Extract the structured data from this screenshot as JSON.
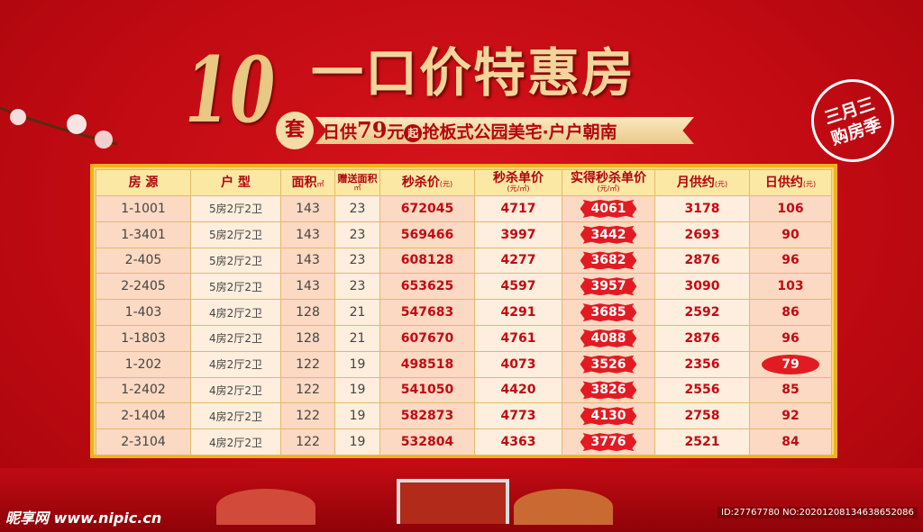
{
  "header": {
    "count": "10",
    "title": "一口价特惠房",
    "unit": "套",
    "sub_pre": "日供",
    "sub_num": "79",
    "sub_yuan": "元",
    "sub_qi": "起",
    "sub_post": "抢板式公园美宅·户户朝南"
  },
  "stamp": {
    "line1": "三月三",
    "line2": "购房季"
  },
  "table": {
    "headers": [
      {
        "t": "房 源",
        "u": ""
      },
      {
        "t": "户 型",
        "u": ""
      },
      {
        "t": "面积",
        "u": "㎡"
      },
      {
        "t": "赠送面积",
        "u": "㎡"
      },
      {
        "t": "秒杀价",
        "u": "(元)"
      },
      {
        "t": "秒杀单价",
        "u": "(元/㎡)"
      },
      {
        "t": "实得秒杀单价",
        "u": "(元/㎡)"
      },
      {
        "t": "月供约",
        "u": "(元)"
      },
      {
        "t": "日供约",
        "u": "(元)"
      }
    ],
    "rows": [
      [
        "1-1001",
        "5房2厅2卫",
        "143",
        "23",
        "672045",
        "4717",
        "4061",
        "3178",
        "106"
      ],
      [
        "1-3401",
        "5房2厅2卫",
        "143",
        "23",
        "569466",
        "3997",
        "3442",
        "2693",
        "90"
      ],
      [
        "2-405",
        "5房2厅2卫",
        "143",
        "23",
        "608128",
        "4277",
        "3682",
        "2876",
        "96"
      ],
      [
        "2-2405",
        "5房2厅2卫",
        "143",
        "23",
        "653625",
        "4597",
        "3957",
        "3090",
        "103"
      ],
      [
        "1-403",
        "4房2厅2卫",
        "128",
        "21",
        "547683",
        "4291",
        "3685",
        "2592",
        "86"
      ],
      [
        "1-1803",
        "4房2厅2卫",
        "128",
        "21",
        "607670",
        "4761",
        "4088",
        "2876",
        "96"
      ],
      [
        "1-202",
        "4房2厅2卫",
        "122",
        "19",
        "498518",
        "4073",
        "3526",
        "2356",
        "79"
      ],
      [
        "1-2402",
        "4房2厅2卫",
        "122",
        "19",
        "541050",
        "4420",
        "3826",
        "2556",
        "85"
      ],
      [
        "2-1404",
        "4房2厅2卫",
        "122",
        "19",
        "582873",
        "4773",
        "4130",
        "2758",
        "92"
      ],
      [
        "2-3104",
        "4房2厅2卫",
        "122",
        "19",
        "532804",
        "4363",
        "3776",
        "2521",
        "84"
      ]
    ],
    "highlight_row": 6
  },
  "watermark": {
    "logo": "昵享网 www.nipic.cn",
    "id": "ID:27767780 NO:20201208134638652086"
  },
  "colors": {
    "background": "#c00a12",
    "gold": "#e8c882",
    "frame": "#f0b11e",
    "accent": "#e21b22"
  }
}
